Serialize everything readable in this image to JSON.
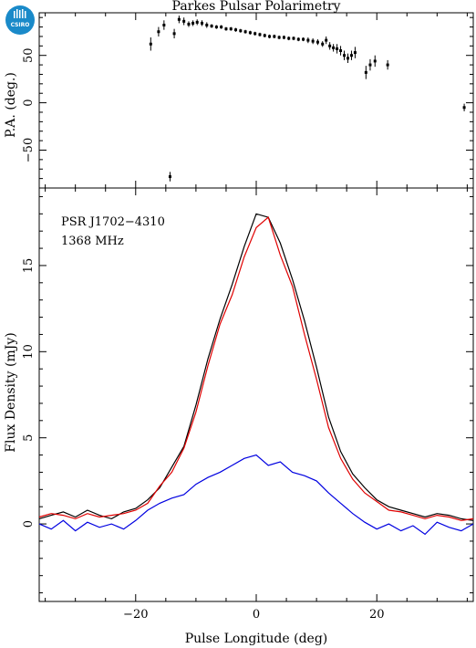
{
  "title": "Parkes Pulsar Polarimetry",
  "logo": {
    "text": "CSIRO",
    "color": "#1a8ac9"
  },
  "colors": {
    "total": "#000000",
    "linear": "#e00000",
    "circular": "#0000e0"
  },
  "chart_data": [
    {
      "type": "scatter",
      "panel": "position-angle",
      "ylabel": "P.A. (deg.)",
      "xlim": [
        -36,
        36
      ],
      "ylim": [
        -90,
        95
      ],
      "yticks": [
        -50,
        0,
        50
      ],
      "ytick_labels": [
        "−50",
        "0",
        "50"
      ],
      "points": [
        {
          "x": -17.5,
          "y": 62,
          "err": 7
        },
        {
          "x": -16.2,
          "y": 75,
          "err": 5
        },
        {
          "x": -15.3,
          "y": 82,
          "err": 5
        },
        {
          "x": -14.3,
          "y": -78,
          "err": 5
        },
        {
          "x": -13.6,
          "y": 73,
          "err": 5
        },
        {
          "x": -12.8,
          "y": 88,
          "err": 4
        },
        {
          "x": -12.0,
          "y": 86,
          "err": 4
        },
        {
          "x": -11.2,
          "y": 83,
          "err": 3
        },
        {
          "x": -10.5,
          "y": 84,
          "err": 3
        },
        {
          "x": -9.8,
          "y": 85,
          "err": 3
        },
        {
          "x": -9.0,
          "y": 84,
          "err": 3
        },
        {
          "x": -8.2,
          "y": 82,
          "err": 3
        },
        {
          "x": -7.4,
          "y": 81,
          "err": 2
        },
        {
          "x": -6.6,
          "y": 80,
          "err": 2
        },
        {
          "x": -5.8,
          "y": 80,
          "err": 2
        },
        {
          "x": -5.0,
          "y": 78,
          "err": 2
        },
        {
          "x": -4.2,
          "y": 78,
          "err": 2
        },
        {
          "x": -3.4,
          "y": 77,
          "err": 2
        },
        {
          "x": -2.6,
          "y": 76,
          "err": 2
        },
        {
          "x": -1.8,
          "y": 75,
          "err": 2
        },
        {
          "x": -1.0,
          "y": 74,
          "err": 2
        },
        {
          "x": -0.2,
          "y": 73,
          "err": 2
        },
        {
          "x": 0.6,
          "y": 72,
          "err": 2
        },
        {
          "x": 1.4,
          "y": 71,
          "err": 2
        },
        {
          "x": 2.2,
          "y": 70,
          "err": 2
        },
        {
          "x": 3.0,
          "y": 70,
          "err": 2
        },
        {
          "x": 3.8,
          "y": 69,
          "err": 2
        },
        {
          "x": 4.6,
          "y": 69,
          "err": 2
        },
        {
          "x": 5.4,
          "y": 68,
          "err": 2
        },
        {
          "x": 6.2,
          "y": 68,
          "err": 2
        },
        {
          "x": 7.0,
          "y": 67,
          "err": 2
        },
        {
          "x": 7.8,
          "y": 67,
          "err": 2
        },
        {
          "x": 8.6,
          "y": 66,
          "err": 3
        },
        {
          "x": 9.4,
          "y": 65,
          "err": 3
        },
        {
          "x": 10.2,
          "y": 64,
          "err": 3
        },
        {
          "x": 11.0,
          "y": 62,
          "err": 3
        },
        {
          "x": 11.6,
          "y": 66,
          "err": 4
        },
        {
          "x": 12.2,
          "y": 60,
          "err": 4
        },
        {
          "x": 12.8,
          "y": 58,
          "err": 4
        },
        {
          "x": 13.4,
          "y": 57,
          "err": 5
        },
        {
          "x": 14.0,
          "y": 55,
          "err": 5
        },
        {
          "x": 14.6,
          "y": 50,
          "err": 5
        },
        {
          "x": 15.2,
          "y": 47,
          "err": 5
        },
        {
          "x": 15.8,
          "y": 50,
          "err": 5
        },
        {
          "x": 16.4,
          "y": 53,
          "err": 6
        },
        {
          "x": 18.2,
          "y": 32,
          "err": 7
        },
        {
          "x": 18.9,
          "y": 40,
          "err": 6
        },
        {
          "x": 19.7,
          "y": 44,
          "err": 6
        },
        {
          "x": 21.8,
          "y": 40,
          "err": 5
        },
        {
          "x": 34.5,
          "y": -5,
          "err": 4
        }
      ]
    },
    {
      "type": "line",
      "panel": "flux-profile",
      "xlabel": "Pulse Longitude (deg)",
      "ylabel": "Flux Density (mJy)",
      "xlim": [
        -36,
        36
      ],
      "ylim": [
        -4.5,
        19.5
      ],
      "xticks": [
        -20,
        0,
        20
      ],
      "xtick_labels": [
        "−20",
        "0",
        "20"
      ],
      "yticks": [
        0,
        5,
        10,
        15
      ],
      "ytick_labels": [
        "0",
        "5",
        "10",
        "15"
      ],
      "annotations": [
        "PSR J1702−4310",
        "1368 MHz"
      ],
      "x": [
        -36,
        -34,
        -32,
        -30,
        -28,
        -26,
        -24,
        -22,
        -20,
        -18,
        -16,
        -14,
        -12,
        -10,
        -8,
        -6,
        -4,
        -2,
        0,
        2,
        4,
        6,
        8,
        10,
        12,
        14,
        16,
        18,
        20,
        22,
        24,
        26,
        28,
        30,
        32,
        34,
        36
      ],
      "series": [
        {
          "color": "#000000",
          "values": [
            0.3,
            0.5,
            0.7,
            0.4,
            0.8,
            0.5,
            0.3,
            0.7,
            0.9,
            1.4,
            2.1,
            3.3,
            4.5,
            6.9,
            9.6,
            11.9,
            13.9,
            16.1,
            18.0,
            17.8,
            16.3,
            14.2,
            11.8,
            9.1,
            6.2,
            4.2,
            2.9,
            2.1,
            1.4,
            1.0,
            0.8,
            0.6,
            0.4,
            0.6,
            0.5,
            0.3,
            0.2
          ]
        },
        {
          "color": "#e00000",
          "values": [
            0.4,
            0.6,
            0.5,
            0.3,
            0.6,
            0.4,
            0.5,
            0.6,
            0.8,
            1.2,
            2.2,
            3.0,
            4.4,
            6.5,
            9.2,
            11.6,
            13.3,
            15.5,
            17.2,
            17.8,
            15.6,
            13.8,
            11.0,
            8.4,
            5.6,
            3.8,
            2.6,
            1.8,
            1.3,
            0.8,
            0.7,
            0.5,
            0.3,
            0.5,
            0.4,
            0.2,
            0.3
          ]
        },
        {
          "color": "#0000e0",
          "values": [
            0.0,
            -0.3,
            0.2,
            -0.4,
            0.1,
            -0.2,
            0.0,
            -0.3,
            0.2,
            0.8,
            1.2,
            1.5,
            1.7,
            2.3,
            2.7,
            3.0,
            3.4,
            3.8,
            4.0,
            3.4,
            3.6,
            3.0,
            2.8,
            2.5,
            1.8,
            1.2,
            0.6,
            0.1,
            -0.3,
            0.0,
            -0.4,
            -0.1,
            -0.6,
            0.1,
            -0.2,
            -0.4,
            0.0
          ]
        }
      ]
    }
  ]
}
